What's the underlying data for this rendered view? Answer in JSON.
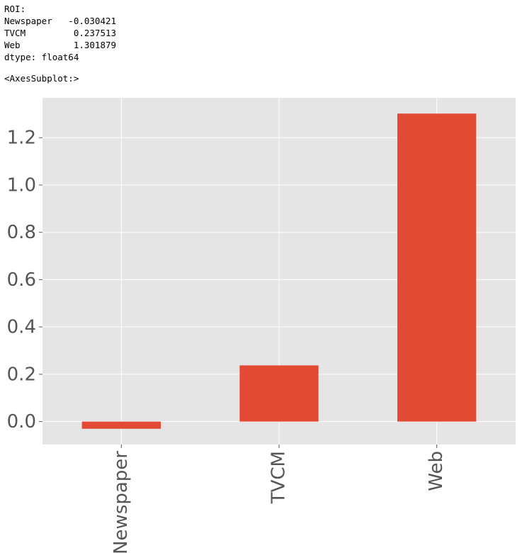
{
  "output_text": {
    "lines": [
      "ROI:",
      "Newspaper   -0.030421",
      "TVCM         0.237513",
      "Web          1.301879",
      "dtype: float64"
    ],
    "repr": "<AxesSubplot:>"
  },
  "chart_data": {
    "type": "bar",
    "categories": [
      "Newspaper",
      "TVCM",
      "Web"
    ],
    "values": [
      -0.030421,
      0.237513,
      1.301879
    ],
    "color": "#E24A33",
    "ylim": [
      -0.09703,
      1.368494
    ],
    "yticks": [
      {
        "value": 0,
        "label": "0.0"
      },
      0.2,
      0.4,
      0.6,
      0.8,
      {
        "value": 1,
        "label": "1.0"
      },
      1.2
    ],
    "grid": true
  }
}
